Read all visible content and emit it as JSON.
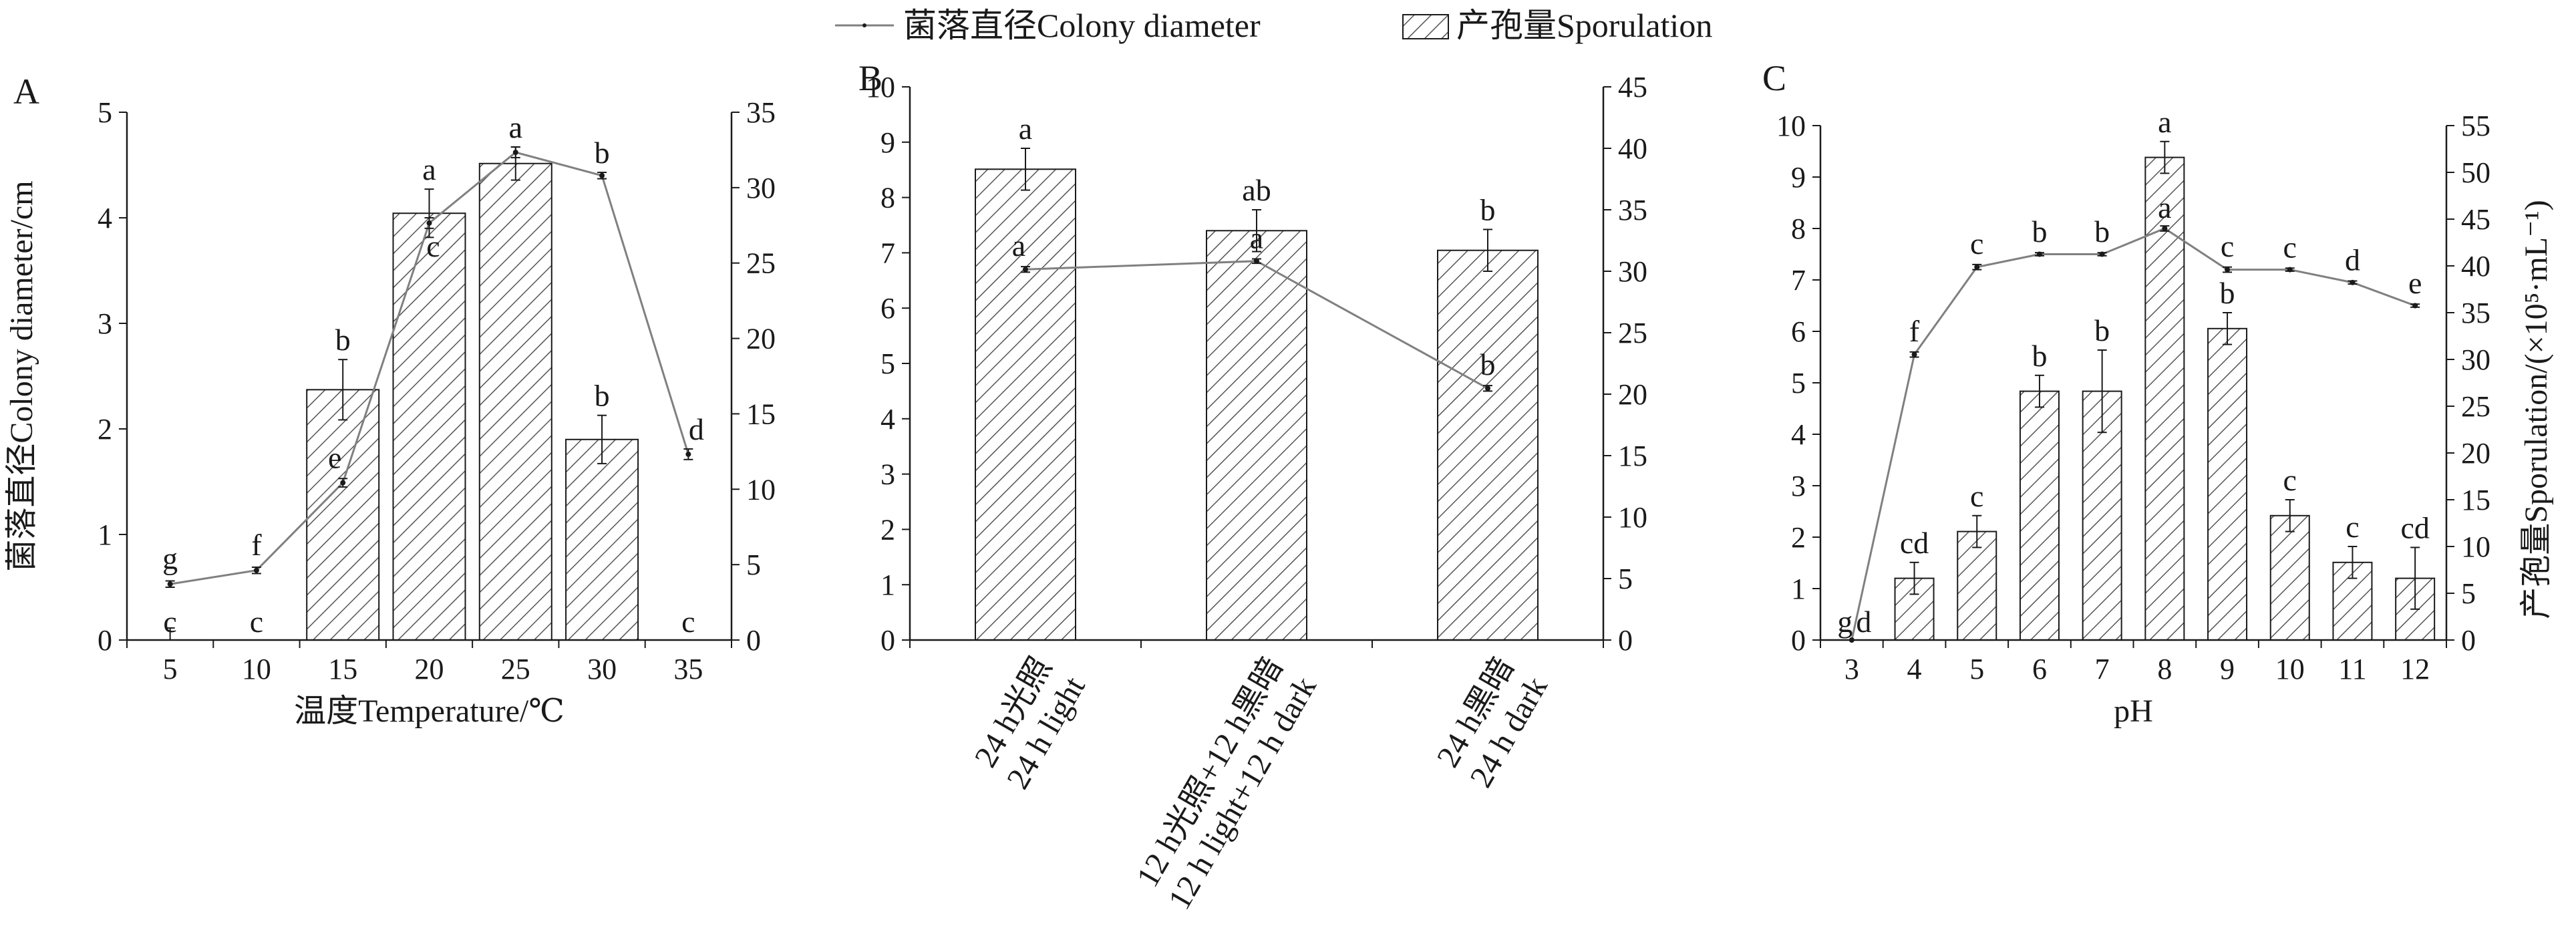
{
  "legend": {
    "line_label": "菌落直径Colony diameter",
    "bar_label": "产孢量Sporulation"
  },
  "colors": {
    "ink": "#1a1a1a",
    "line": "#808080",
    "hatch": "#555555"
  },
  "chart_data": [
    {
      "panel": "A",
      "type": "bar",
      "categories": [
        "5",
        "10",
        "15",
        "20",
        "25",
        "30",
        "35"
      ],
      "xlabel": "温度Temperature/℃",
      "ylabel": "菌落直径Colony diameter/cm",
      "y2label": "",
      "ylim": [
        0,
        5
      ],
      "yticks": [
        0,
        1,
        2,
        3,
        4,
        5
      ],
      "y2lim": [
        0,
        35
      ],
      "y2ticks": [
        0,
        5,
        10,
        15,
        20,
        25,
        30,
        35
      ],
      "bars": {
        "name": "产孢量Sporulation",
        "axis": "right",
        "values": [
          0,
          0,
          16.6,
          28.3,
          31.6,
          13.3,
          0
        ],
        "errors": [
          0.8,
          0,
          2.0,
          1.6,
          1.1,
          1.6,
          0
        ],
        "labels": [
          "c",
          "c",
          "b",
          "a",
          "a",
          "b",
          "c"
        ]
      },
      "line": {
        "name": "菌落直径Colony diameter",
        "axis": "left",
        "values": [
          0.53,
          0.66,
          1.49,
          3.95,
          4.62,
          4.4,
          1.76
        ],
        "errors": [
          0.03,
          0.03,
          0.04,
          0.05,
          0.05,
          0.03,
          0.05
        ],
        "labels": [
          "g",
          "f",
          "e",
          "c",
          "a",
          "b",
          "d"
        ]
      }
    },
    {
      "panel": "B",
      "type": "bar",
      "categories": [
        "24 h光照\n24 h light",
        "12 h光照+12 h黑暗\n12 h light+12 h dark",
        "24 h黑暗\n24 h dark"
      ],
      "xlabel": "",
      "ylabel": "",
      "y2label": "",
      "ylim": [
        0,
        10
      ],
      "yticks": [
        0,
        1,
        2,
        3,
        4,
        5,
        6,
        7,
        8,
        9,
        10
      ],
      "y2lim": [
        0,
        45
      ],
      "y2ticks": [
        0,
        5,
        10,
        15,
        20,
        25,
        30,
        35,
        40,
        45
      ],
      "bars": {
        "name": "产孢量Sporulation",
        "axis": "right",
        "values": [
          38.3,
          33.3,
          31.7
        ],
        "errors": [
          1.7,
          1.7,
          1.7
        ],
        "labels": [
          "a",
          "ab",
          "b"
        ]
      },
      "line": {
        "name": "菌落直径Colony diameter",
        "axis": "left",
        "values": [
          6.7,
          6.85,
          4.55
        ],
        "errors": [
          0.05,
          0.04,
          0.05
        ],
        "labels": [
          "a",
          "a",
          "b"
        ]
      }
    },
    {
      "panel": "C",
      "type": "bar",
      "categories": [
        "3",
        "4",
        "5",
        "6",
        "7",
        "8",
        "9",
        "10",
        "11",
        "12"
      ],
      "xlabel": "pH",
      "ylabel": "",
      "y2label": "产孢量Sporulation/(×10⁵·mL⁻¹)",
      "ylim": [
        0,
        10
      ],
      "yticks": [
        0,
        1,
        2,
        3,
        4,
        5,
        6,
        7,
        8,
        9,
        10
      ],
      "y2lim": [
        0,
        55
      ],
      "y2ticks": [
        0,
        5,
        10,
        15,
        20,
        25,
        30,
        35,
        40,
        45,
        50,
        55
      ],
      "bars": {
        "name": "产孢量Sporulation",
        "axis": "right",
        "values": [
          0,
          6.6,
          11.6,
          26.6,
          26.6,
          51.6,
          33.3,
          13.3,
          8.3,
          6.6
        ],
        "errors": [
          0,
          1.7,
          1.7,
          1.7,
          4.4,
          1.7,
          1.7,
          1.7,
          1.7,
          3.3
        ],
        "labels": [
          "g",
          "cd",
          "c",
          "b",
          "b",
          "a",
          "b",
          "c",
          "c",
          "cd"
        ]
      },
      "line": {
        "name": "菌落直径Colony diameter",
        "axis": "left",
        "values": [
          0,
          5.55,
          7.25,
          7.5,
          7.5,
          8.0,
          7.2,
          7.2,
          6.95,
          6.5
        ],
        "errors": [
          0,
          0.05,
          0.05,
          0.03,
          0.03,
          0.05,
          0.05,
          0.03,
          0.03,
          0.03
        ],
        "labels": [
          "d",
          "f",
          "c",
          "b",
          "b",
          "a",
          "c",
          "c",
          "d",
          "e"
        ]
      }
    }
  ]
}
